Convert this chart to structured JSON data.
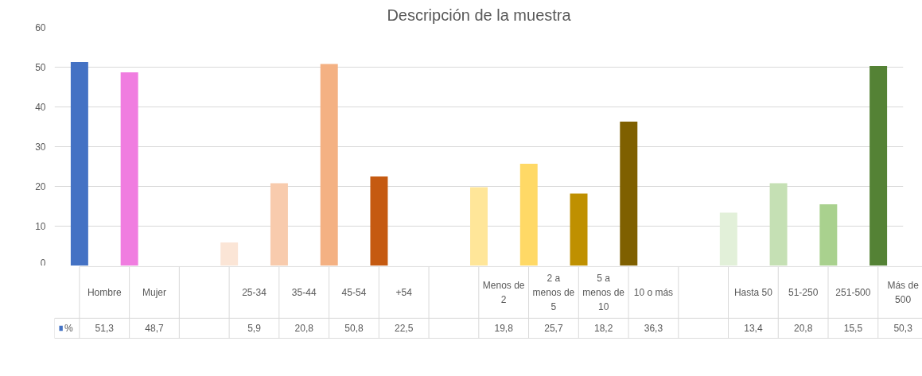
{
  "chart_data": {
    "type": "bar",
    "title": "Descripción de la muestra",
    "categories": [
      "Hombre",
      "Mujer",
      null,
      "25-34",
      "35-44",
      "45-54",
      "+54",
      null,
      "Menos de 2",
      "2 a menos de 5",
      "5 a menos de 10",
      "10 o más",
      null,
      "Hasta 50",
      "51-250",
      "251-500",
      "Más de 500"
    ],
    "series": [
      {
        "name": "%",
        "color": "#4472c4",
        "colors": [
          "#4472c4",
          "#f07de0",
          null,
          "#fbe5d6",
          "#f8cbad",
          "#f4b183",
          "#c55a11",
          null,
          "#ffe699",
          "#ffd966",
          "#bf9000",
          "#7f6000",
          null,
          "#e2f0d9",
          "#c5e0b4",
          "#a9d18e",
          "#548235"
        ],
        "values": [
          51.3,
          48.7,
          null,
          5.9,
          20.8,
          50.8,
          22.5,
          null,
          19.8,
          25.7,
          18.2,
          36.3,
          null,
          13.4,
          20.8,
          15.5,
          50.3
        ],
        "value_labels": [
          "51,3",
          "48,7",
          null,
          "5,9",
          "20,8",
          "50,8",
          "22,5",
          null,
          "19,8",
          "25,7",
          "18,2",
          "36,3",
          null,
          "13,4",
          "20,8",
          "15,5",
          "50,3"
        ]
      }
    ],
    "ylim": [
      0,
      60
    ],
    "yticks": [
      0,
      10,
      20,
      30,
      40,
      50,
      60
    ],
    "grid": "y"
  }
}
